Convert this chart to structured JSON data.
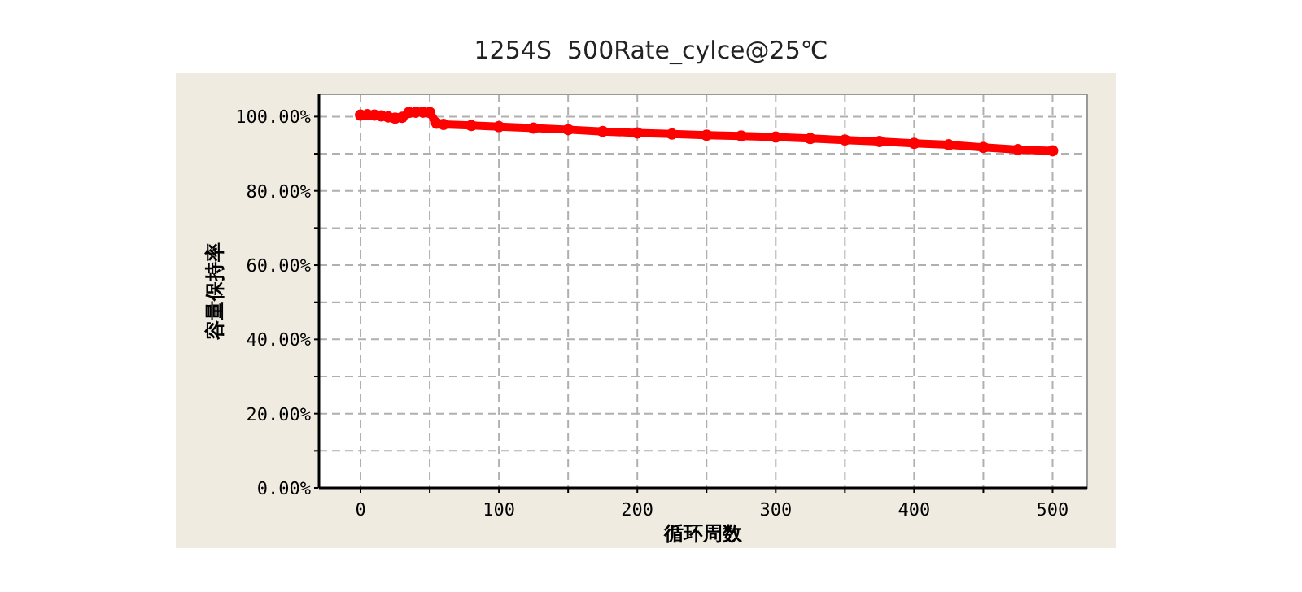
{
  "chart_data": {
    "type": "line",
    "title": "1254S  500Rate_cylce@25℃",
    "xlabel": "循环周数",
    "ylabel": "容量保持率",
    "x": [
      0,
      5,
      10,
      15,
      20,
      25,
      30,
      35,
      40,
      45,
      50,
      55,
      60,
      80,
      100,
      125,
      150,
      175,
      200,
      225,
      250,
      275,
      300,
      325,
      350,
      375,
      400,
      425,
      450,
      475,
      500
    ],
    "series": [
      {
        "color": "#ff0000",
        "values": [
          100.4,
          100.5,
          100.4,
          100.2,
          99.9,
          99.6,
          99.8,
          101.1,
          101.2,
          101.2,
          101.1,
          98.2,
          97.9,
          97.6,
          97.3,
          96.9,
          96.5,
          96.0,
          95.6,
          95.3,
          95.0,
          94.8,
          94.5,
          94.1,
          93.7,
          93.3,
          92.8,
          92.4,
          91.7,
          91.1,
          90.8
        ]
      }
    ],
    "xlim": [
      -30,
      525
    ],
    "ylim": [
      0,
      106
    ],
    "xticks": [
      0,
      {
        "value": 50,
        "label": null
      },
      100,
      {
        "value": 150,
        "label": null
      },
      200,
      {
        "value": 250,
        "label": null
      },
      300,
      {
        "value": 350,
        "label": null
      },
      400,
      {
        "value": 450,
        "label": null
      },
      500
    ],
    "yticks": [
      {
        "value": 0,
        "label": "0.00%"
      },
      {
        "value": 10,
        "label": null
      },
      {
        "value": 20,
        "label": "20.00%"
      },
      {
        "value": 30,
        "label": null
      },
      {
        "value": 40,
        "label": "40.00%"
      },
      {
        "value": 50,
        "label": null
      },
      {
        "value": 60,
        "label": "60.00%"
      },
      {
        "value": 70,
        "label": null
      },
      {
        "value": 80,
        "label": "80.00%"
      },
      {
        "value": 90,
        "label": null
      },
      {
        "value": 100,
        "label": "100.00%"
      }
    ],
    "grid": true,
    "marker": "circle",
    "line_style": "solid"
  }
}
